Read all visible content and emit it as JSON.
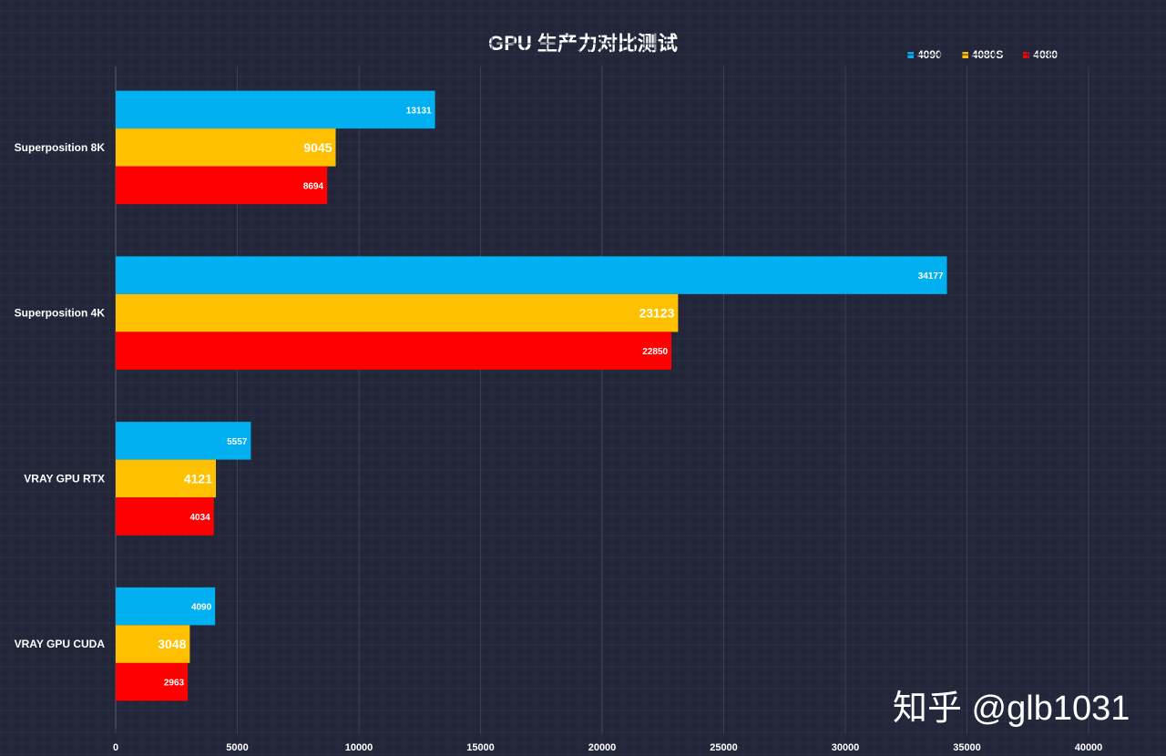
{
  "chart_data": {
    "type": "bar",
    "orientation": "horizontal",
    "title": "GPU 生产力对比测试",
    "categories": [
      "Superposition 8K",
      "Superposition 4K",
      "VRAY GPU RTX",
      "VRAY GPU CUDA"
    ],
    "series": [
      {
        "name": "4090",
        "color": "#00b0f0",
        "values": [
          13131,
          34177,
          5557,
          4090
        ]
      },
      {
        "name": "4080S",
        "color": "#ffc000",
        "values": [
          9045,
          23123,
          4121,
          3048
        ]
      },
      {
        "name": "4080",
        "color": "#ff0000",
        "values": [
          8694,
          22850,
          4034,
          2963
        ]
      }
    ],
    "xlim": [
      0,
      40000
    ],
    "xticks": [
      0,
      5000,
      10000,
      15000,
      20000,
      25000,
      30000,
      35000,
      40000
    ],
    "xlabel": "",
    "ylabel": "",
    "grid": true,
    "legend_position": "top-right"
  },
  "watermark": "知乎 @glb1031"
}
